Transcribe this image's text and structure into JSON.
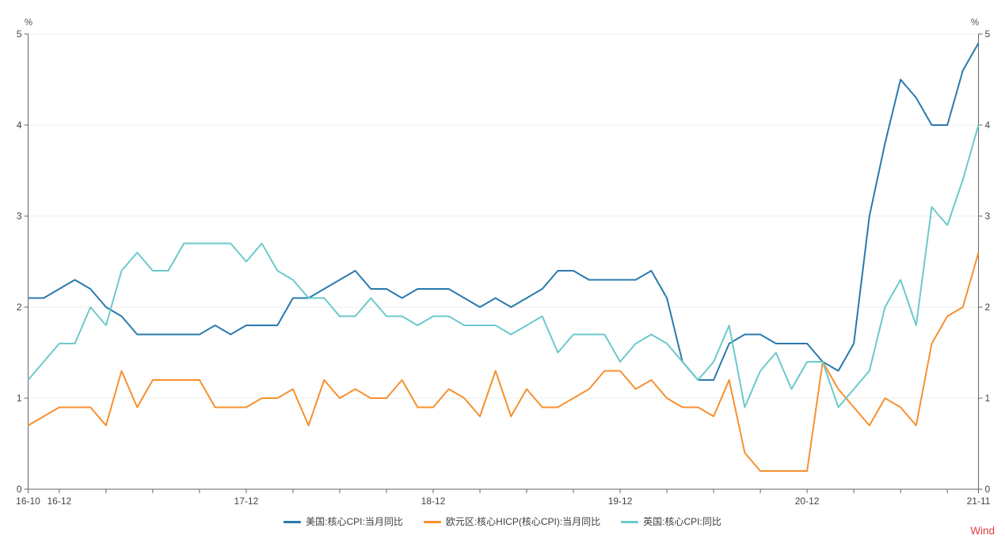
{
  "brand": "Wind",
  "colors": {
    "us_line": "#2a79ad",
    "ez_line": "#f7902f",
    "uk_line": "#6cc9ca",
    "grid": "#ededed",
    "axis": "#666666",
    "tick_text": "#444444",
    "legend_text": "#3d3d3d",
    "brand_red": "#e23d3d",
    "background": "#ffffff"
  },
  "chart_data": {
    "type": "line",
    "title": "",
    "y_unit": "%",
    "ylim": [
      0,
      5
    ],
    "yticks": [
      0,
      1,
      2,
      3,
      4,
      5
    ],
    "grid": "horizontal",
    "legend_position": "bottom-center",
    "x_frequency": "monthly",
    "x_start": "2016-10",
    "x_end": "2021-11",
    "x_months": [
      "2016-10",
      "2016-11",
      "2016-12",
      "2017-01",
      "2017-02",
      "2017-03",
      "2017-04",
      "2017-05",
      "2017-06",
      "2017-07",
      "2017-08",
      "2017-09",
      "2017-10",
      "2017-11",
      "2017-12",
      "2018-01",
      "2018-02",
      "2018-03",
      "2018-04",
      "2018-05",
      "2018-06",
      "2018-07",
      "2018-08",
      "2018-09",
      "2018-10",
      "2018-11",
      "2018-12",
      "2019-01",
      "2019-02",
      "2019-03",
      "2019-04",
      "2019-05",
      "2019-06",
      "2019-07",
      "2019-08",
      "2019-09",
      "2019-10",
      "2019-11",
      "2019-12",
      "2020-01",
      "2020-02",
      "2020-03",
      "2020-04",
      "2020-05",
      "2020-06",
      "2020-07",
      "2020-08",
      "2020-09",
      "2020-10",
      "2020-11",
      "2020-12",
      "2021-01",
      "2021-02",
      "2021-03",
      "2021-04",
      "2021-05",
      "2021-06",
      "2021-07",
      "2021-08",
      "2021-09",
      "2021-10",
      "2021-11"
    ],
    "x_ticks": [
      {
        "m": 0,
        "label": "16-10"
      },
      {
        "m": 2,
        "label": "16-12"
      },
      {
        "m": 5,
        "label": ""
      },
      {
        "m": 8,
        "label": ""
      },
      {
        "m": 11,
        "label": ""
      },
      {
        "m": 14,
        "label": "17-12"
      },
      {
        "m": 17,
        "label": ""
      },
      {
        "m": 20,
        "label": ""
      },
      {
        "m": 23,
        "label": ""
      },
      {
        "m": 26,
        "label": "18-12"
      },
      {
        "m": 29,
        "label": ""
      },
      {
        "m": 32,
        "label": ""
      },
      {
        "m": 35,
        "label": ""
      },
      {
        "m": 38,
        "label": "19-12"
      },
      {
        "m": 41,
        "label": ""
      },
      {
        "m": 44,
        "label": ""
      },
      {
        "m": 47,
        "label": ""
      },
      {
        "m": 50,
        "label": "20-12"
      },
      {
        "m": 53,
        "label": ""
      },
      {
        "m": 56,
        "label": ""
      },
      {
        "m": 59,
        "label": ""
      },
      {
        "m": 61,
        "label": "21-11"
      }
    ],
    "series": [
      {
        "id": "us-core-cpi",
        "name": "美国:核心CPI:当月同比",
        "color": "#2a79ad",
        "values": [
          2.1,
          2.1,
          2.2,
          2.3,
          2.2,
          2.0,
          1.9,
          1.7,
          1.7,
          1.7,
          1.7,
          1.7,
          1.8,
          1.7,
          1.8,
          1.8,
          1.8,
          2.1,
          2.1,
          2.2,
          2.3,
          2.4,
          2.2,
          2.2,
          2.1,
          2.2,
          2.2,
          2.2,
          2.1,
          2.0,
          2.1,
          2.0,
          2.1,
          2.2,
          2.4,
          2.4,
          2.3,
          2.3,
          2.3,
          2.3,
          2.4,
          2.1,
          1.4,
          1.2,
          1.2,
          1.6,
          1.7,
          1.7,
          1.6,
          1.6,
          1.6,
          1.4,
          1.3,
          1.6,
          3.0,
          3.8,
          4.5,
          4.3,
          4.0,
          4.0,
          4.6,
          4.9
        ]
      },
      {
        "id": "ez-core-hicp",
        "name": "欧元区:核心HICP(核心CPI):当月同比",
        "color": "#f7902f",
        "values": [
          0.7,
          0.8,
          0.9,
          0.9,
          0.9,
          0.7,
          1.3,
          0.9,
          1.2,
          1.2,
          1.2,
          1.2,
          0.9,
          0.9,
          0.9,
          1.0,
          1.0,
          1.1,
          0.7,
          1.2,
          1.0,
          1.1,
          1.0,
          1.0,
          1.2,
          0.9,
          0.9,
          1.1,
          1.0,
          0.8,
          1.3,
          0.8,
          1.1,
          0.9,
          0.9,
          1.0,
          1.1,
          1.3,
          1.3,
          1.1,
          1.2,
          1.0,
          0.9,
          0.9,
          0.8,
          1.2,
          0.4,
          0.2,
          0.2,
          0.2,
          0.2,
          1.4,
          1.1,
          0.9,
          0.7,
          1.0,
          0.9,
          0.7,
          1.6,
          1.9,
          2.0,
          2.6
        ]
      },
      {
        "id": "uk-core-cpi",
        "name": "英国:核心CPI:同比",
        "color": "#6cc9ca",
        "values": [
          1.2,
          1.4,
          1.6,
          1.6,
          2.0,
          1.8,
          2.4,
          2.6,
          2.4,
          2.4,
          2.7,
          2.7,
          2.7,
          2.7,
          2.5,
          2.7,
          2.4,
          2.3,
          2.1,
          2.1,
          1.9,
          1.9,
          2.1,
          1.9,
          1.9,
          1.8,
          1.9,
          1.9,
          1.8,
          1.8,
          1.8,
          1.7,
          1.8,
          1.9,
          1.5,
          1.7,
          1.7,
          1.7,
          1.4,
          1.6,
          1.7,
          1.6,
          1.4,
          1.2,
          1.4,
          1.8,
          0.9,
          1.3,
          1.5,
          1.1,
          1.4,
          1.4,
          0.9,
          1.1,
          1.3,
          2.0,
          2.3,
          1.8,
          3.1,
          2.9,
          3.4,
          4.0
        ]
      }
    ]
  }
}
